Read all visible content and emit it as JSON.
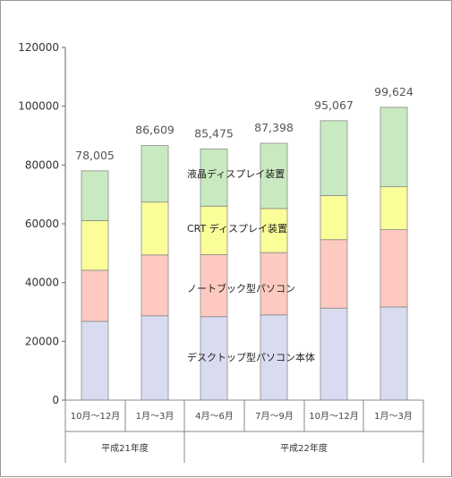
{
  "chart_data": {
    "type": "bar",
    "stacked": true,
    "title": "",
    "xlabel": "",
    "ylabel": "",
    "ylim": [
      0,
      120000
    ],
    "yticks": [
      0,
      20000,
      40000,
      60000,
      80000,
      100000,
      120000
    ],
    "grid": false,
    "categories": [
      "10月～12月",
      "1月～3月",
      "4月～6月",
      "7月～9月",
      "10月～12月",
      "1月～3月"
    ],
    "category_highlight": [
      false,
      false,
      false,
      false,
      false,
      true
    ],
    "groups": [
      {
        "label": "平成21年度",
        "span": [
          0,
          1
        ]
      },
      {
        "label": "平成22年度",
        "span": [
          2,
          5
        ]
      }
    ],
    "totals": [
      78005,
      86609,
      85475,
      87398,
      95067,
      99624
    ],
    "total_labels": [
      "78,005",
      "86,609",
      "85,475",
      "87,398",
      "95,067",
      "99,624"
    ],
    "series": [
      {
        "name": "デスクトップ型パソコン本体",
        "color": "#d9dcf0",
        "values": [
          26800,
          28700,
          28400,
          29000,
          31300,
          31700
        ]
      },
      {
        "name": "ノートブック型パソコン",
        "color": "#fdc9c0",
        "values": [
          17400,
          20700,
          21100,
          21200,
          23300,
          26300
        ]
      },
      {
        "name": "CRT ディスプレイ装置",
        "color": "#fbfd99",
        "values": [
          16900,
          18000,
          16500,
          15000,
          15000,
          14600
        ]
      },
      {
        "name": "液晶ディスプレイ装置",
        "color": "#c9eac1",
        "values": [
          16905,
          19209,
          19475,
          22198,
          25467,
          27024
        ]
      }
    ],
    "highlight_color": "#e8261e"
  }
}
